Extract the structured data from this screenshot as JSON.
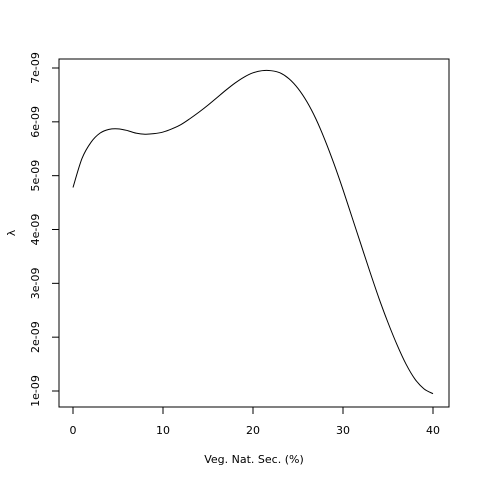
{
  "chart_data": {
    "type": "line",
    "title": "",
    "xlabel": "Veg. Nat. Sec. (%)",
    "ylabel": "λ",
    "xlim": [
      0,
      40
    ],
    "ylim": [
      1e-09,
      7e-09
    ],
    "x_ticks": [
      0,
      10,
      20,
      30,
      40
    ],
    "x_tick_labels": [
      "0",
      "10",
      "20",
      "30",
      "40"
    ],
    "y_ticks": [
      1e-09,
      2e-09,
      3e-09,
      4e-09,
      5e-09,
      6e-09,
      7e-09
    ],
    "y_tick_labels": [
      "1e-09",
      "2e-09",
      "3e-09",
      "4e-09",
      "5e-09",
      "6e-09",
      "7e-09"
    ],
    "grid": false,
    "series": [
      {
        "x": [
          0,
          1,
          2,
          3,
          4,
          5,
          6,
          7,
          8,
          9,
          10,
          11,
          12,
          13,
          14,
          15,
          16,
          17,
          18,
          19,
          20,
          21,
          22,
          23,
          24,
          25,
          26,
          27,
          28,
          29,
          30,
          31,
          32,
          33,
          34,
          35,
          36,
          37,
          38,
          39,
          40
        ],
        "y": [
          4.78e-09,
          5.32e-09,
          5.62e-09,
          5.79e-09,
          5.86e-09,
          5.87e-09,
          5.84e-09,
          5.79e-09,
          5.77e-09,
          5.78e-09,
          5.81e-09,
          5.87e-09,
          5.95e-09,
          6.06e-09,
          6.18e-09,
          6.31e-09,
          6.45e-09,
          6.59e-09,
          6.72e-09,
          6.83e-09,
          6.91e-09,
          6.95e-09,
          6.95e-09,
          6.91e-09,
          6.8e-09,
          6.62e-09,
          6.37e-09,
          6.05e-09,
          5.66e-09,
          5.22e-09,
          4.74e-09,
          4.23e-09,
          3.72e-09,
          3.21e-09,
          2.72e-09,
          2.27e-09,
          1.86e-09,
          1.5e-09,
          1.22e-09,
          1.04e-09,
          9.5e-10
        ]
      }
    ]
  }
}
